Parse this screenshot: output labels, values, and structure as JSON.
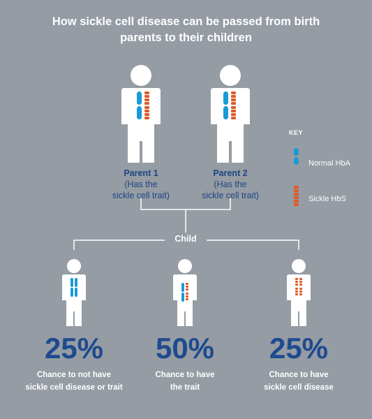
{
  "title_lines": [
    "How sickle cell disease can be passed from birth",
    "parents to their children"
  ],
  "parents": [
    {
      "name": "Parent 1",
      "note_lines": [
        "(Has the",
        "sickle cell trait)"
      ]
    },
    {
      "name": "Parent 2",
      "note_lines": [
        "(Has the",
        "sickle cell trait)"
      ]
    }
  ],
  "key": {
    "title": "KEY",
    "normal": "Normal HbA",
    "sickle": "Sickle HbS"
  },
  "child_label": "Child",
  "children": [
    {
      "percent": "25%",
      "desc_lines": [
        "Chance to not have",
        "sickle cell disease or trait"
      ],
      "genes": [
        "normal",
        "normal"
      ]
    },
    {
      "percent": "50%",
      "desc_lines": [
        "Chance to have",
        "the trait"
      ],
      "genes": [
        "normal",
        "sickle"
      ]
    },
    {
      "percent": "25%",
      "desc_lines": [
        "Chance to have",
        "sickle cell disease"
      ],
      "genes": [
        "sickle",
        "sickle"
      ]
    }
  ],
  "colors": {
    "background": "#959ca3",
    "normal_hba": "#1b9ad6",
    "sickle_hbs": "#e05a26",
    "label_blue": "#1c4585",
    "percent_blue": "#1e4a8f"
  }
}
